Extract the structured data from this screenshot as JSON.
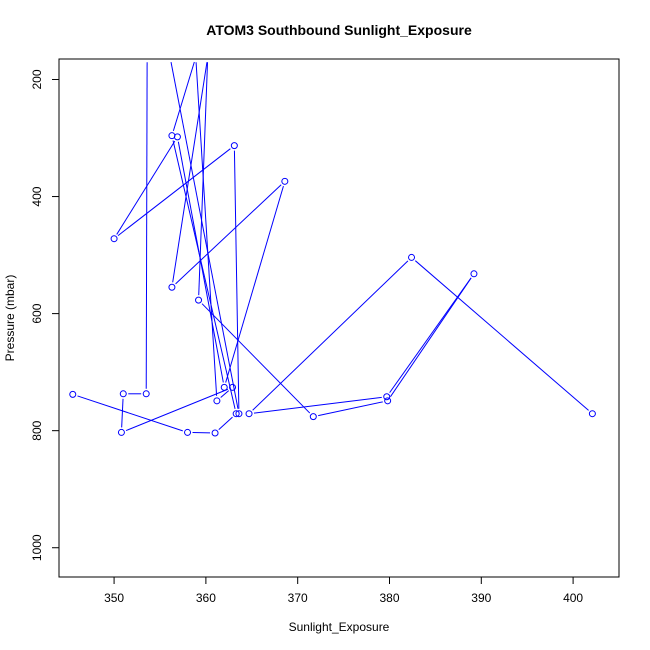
{
  "chart_data": {
    "type": "line",
    "title": "ATOM3 Southbound Sunlight_Exposure",
    "xlabel": "Sunlight_Exposure",
    "ylabel": "Pressure (mbar)",
    "xlim": [
      344,
      405
    ],
    "ylim": [
      1050,
      165
    ],
    "y_reversed": true,
    "x_ticks": [
      350,
      360,
      370,
      380,
      390,
      400
    ],
    "y_ticks": [
      200,
      400,
      600,
      800,
      1000
    ],
    "series": [
      {
        "color": "#0000ff",
        "marker": "open-circle",
        "points": [
          {
            "x": 345.5,
            "y": 738
          },
          {
            "x": 358.0,
            "y": 803
          },
          {
            "x": 361.0,
            "y": 804
          },
          {
            "x": 363.3,
            "y": 771
          },
          {
            "x": 356.3,
            "y": 296
          },
          {
            "x": 358.9,
            "y": 162,
            "clipped": true
          },
          {
            "x": 361.2,
            "y": 749
          },
          {
            "x": 362.9,
            "y": 726
          },
          {
            "x": 350.8,
            "y": 803
          },
          {
            "x": 351.0,
            "y": 737
          },
          {
            "x": 353.5,
            "y": 737
          },
          {
            "x": 353.6,
            "y": 162,
            "clipped": true
          },
          {
            "x": 356.1,
            "y": 162,
            "clipped": true
          },
          {
            "x": 363.6,
            "y": 771
          },
          {
            "x": 363.1,
            "y": 313
          },
          {
            "x": 350.0,
            "y": 472
          },
          {
            "x": 356.9,
            "y": 298
          },
          {
            "x": 362.0,
            "y": 726
          },
          {
            "x": 368.6,
            "y": 374
          },
          {
            "x": 356.3,
            "y": 555
          },
          {
            "x": 360.2,
            "y": 162,
            "clipped": true
          },
          {
            "x": 359.2,
            "y": 577
          },
          {
            "x": 371.7,
            "y": 776
          },
          {
            "x": 379.8,
            "y": 749
          },
          {
            "x": 389.2,
            "y": 532
          },
          {
            "x": 379.7,
            "y": 742
          },
          {
            "x": 364.7,
            "y": 771
          },
          {
            "x": 382.4,
            "y": 504
          },
          {
            "x": 402.1,
            "y": 771
          }
        ]
      }
    ]
  }
}
